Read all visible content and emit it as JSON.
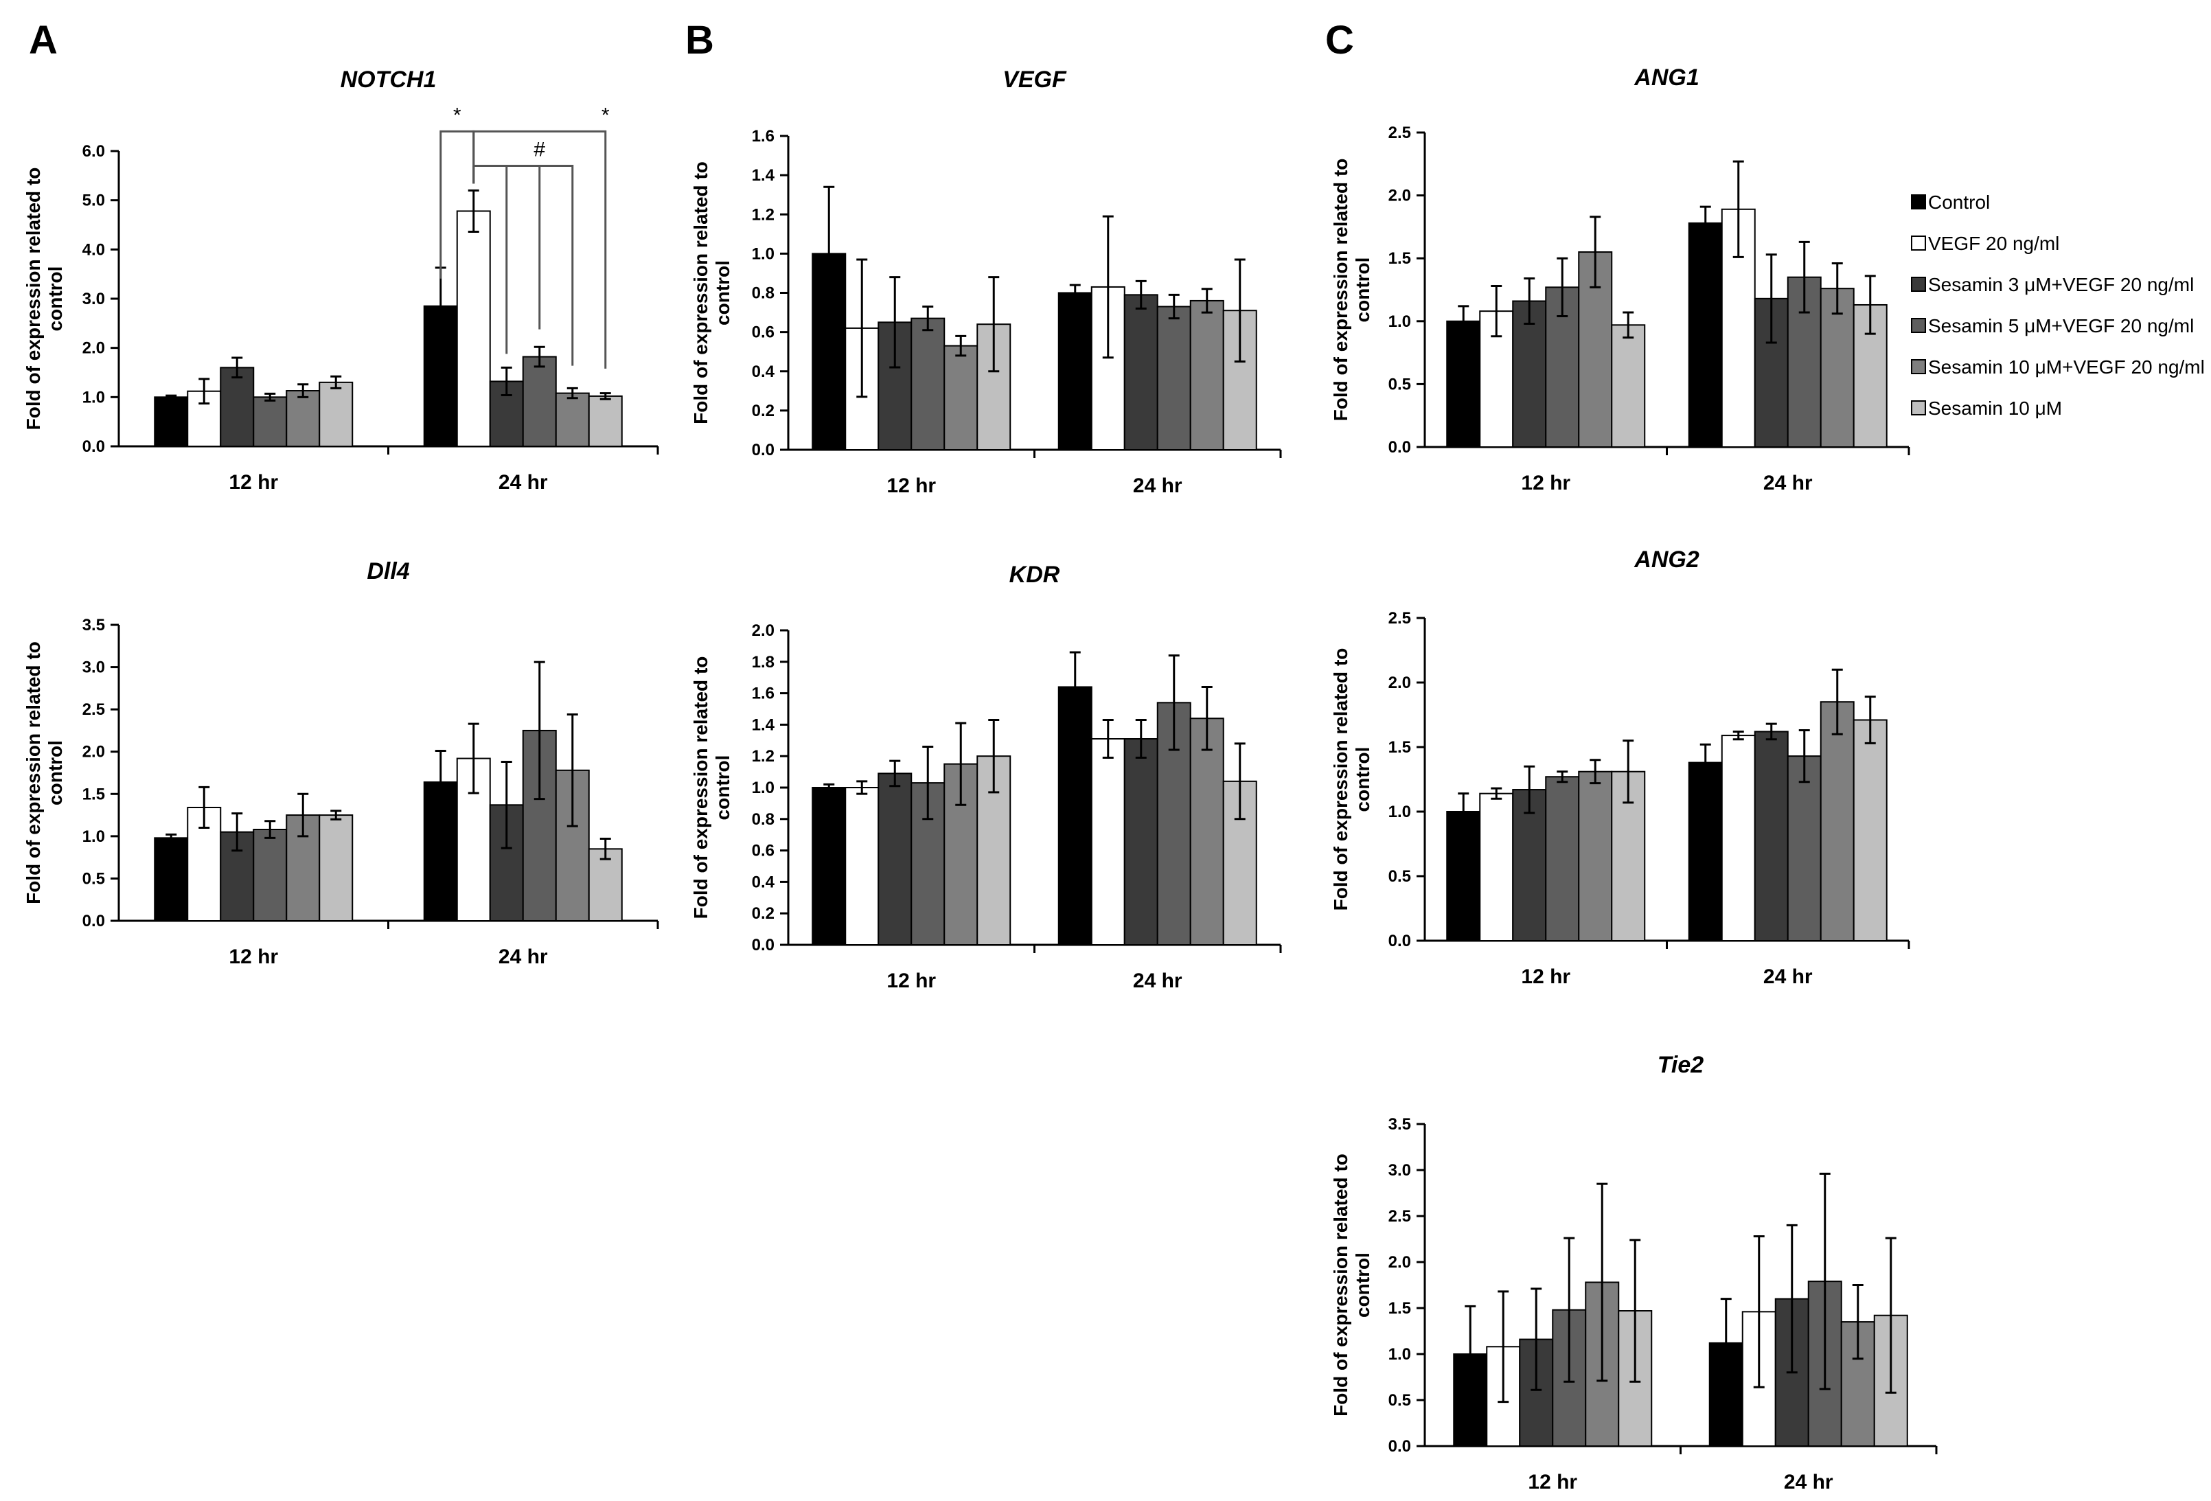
{
  "figure": {
    "panel_letters": [
      "A",
      "B",
      "C"
    ],
    "y_axis_label_line1": "Fold of expression related to",
    "y_axis_label_line2": "control"
  },
  "legend": [
    {
      "label": "Control",
      "color": "#000000"
    },
    {
      "label": "VEGF 20 ng/ml",
      "color": "#ffffff"
    },
    {
      "label": "Sesamin 3 μM+VEGF 20 ng/ml",
      "color": "#3a3a3a"
    },
    {
      "label": "Sesamin 5 μM+VEGF 20 ng/ml",
      "color": "#5e5e5e"
    },
    {
      "label": "Sesamin 10 μM+VEGF 20 ng/ml",
      "color": "#7f7f7f"
    },
    {
      "label": "Sesamin 10 μM",
      "color": "#bfbfbf"
    }
  ],
  "chart_data": [
    {
      "type": "bar",
      "title": "NOTCH1",
      "panel": "A",
      "categories": [
        "12 hr",
        "24 hr"
      ],
      "yticks": [
        "0.0",
        "1.0",
        "2.0",
        "3.0",
        "4.0",
        "5.0",
        "6.0"
      ],
      "ylim": [
        0,
        6
      ],
      "series": [
        {
          "name": "Control",
          "values": [
            1.0,
            2.85
          ],
          "errors": [
            0.03,
            0.78
          ]
        },
        {
          "name": "VEGF 20 ng/ml",
          "values": [
            1.12,
            4.78
          ],
          "errors": [
            0.25,
            0.42
          ]
        },
        {
          "name": "Sesamin 3 μM+VEGF 20 ng/ml",
          "values": [
            1.6,
            1.32
          ],
          "errors": [
            0.2,
            0.28
          ]
        },
        {
          "name": "Sesamin 5 μM+VEGF 20 ng/ml",
          "values": [
            1.0,
            1.82
          ],
          "errors": [
            0.07,
            0.2
          ]
        },
        {
          "name": "Sesamin 10 μM+VEGF 20 ng/ml",
          "values": [
            1.13,
            1.08
          ],
          "errors": [
            0.13,
            0.1
          ]
        },
        {
          "name": "Sesamin 10 μM",
          "values": [
            1.3,
            1.02
          ],
          "errors": [
            0.12,
            0.06
          ]
        }
      ],
      "annotations": [
        {
          "text": "*",
          "from_series": 0,
          "to_series": 1,
          "group": 1,
          "level": 6.4
        },
        {
          "text": "*",
          "from_series": 1,
          "to_series": 5,
          "group": 1,
          "level": 6.4
        },
        {
          "text": "#",
          "from_series": 2,
          "to_series": 4,
          "group": 1,
          "level": 5.7,
          "from_bar": 1
        }
      ]
    },
    {
      "type": "bar",
      "title": "Dll4",
      "panel": "A",
      "categories": [
        "12 hr",
        "24 hr"
      ],
      "yticks": [
        "0.0",
        "0.5",
        "1.0",
        "1.5",
        "2.0",
        "2.5",
        "3.0",
        "3.5"
      ],
      "ylim": [
        0,
        3.5
      ],
      "series": [
        {
          "name": "Control",
          "values": [
            0.98,
            1.64
          ],
          "errors": [
            0.04,
            0.37
          ]
        },
        {
          "name": "VEGF 20 ng/ml",
          "values": [
            1.34,
            1.92
          ],
          "errors": [
            0.24,
            0.41
          ]
        },
        {
          "name": "Sesamin 3 μM+VEGF 20 ng/ml",
          "values": [
            1.05,
            1.37
          ],
          "errors": [
            0.22,
            0.51
          ]
        },
        {
          "name": "Sesamin 5 μM+VEGF 20 ng/ml",
          "values": [
            1.08,
            2.25
          ],
          "errors": [
            0.1,
            0.81
          ]
        },
        {
          "name": "Sesamin 10 μM+VEGF 20 ng/ml",
          "values": [
            1.25,
            1.78
          ],
          "errors": [
            0.25,
            0.66
          ]
        },
        {
          "name": "Sesamin 10 μM",
          "values": [
            1.25,
            0.85
          ],
          "errors": [
            0.05,
            0.12
          ]
        }
      ]
    },
    {
      "type": "bar",
      "title": "VEGF",
      "panel": "B",
      "categories": [
        "12 hr",
        "24 hr"
      ],
      "yticks": [
        "0.0",
        "0.2",
        "0.4",
        "0.6",
        "0.8",
        "1.0",
        "1.2",
        "1.4",
        "1.6"
      ],
      "ylim": [
        0,
        1.6
      ],
      "series": [
        {
          "name": "Control",
          "values": [
            1.0,
            0.8
          ],
          "errors": [
            0.34,
            0.04
          ]
        },
        {
          "name": "VEGF 20 ng/ml",
          "values": [
            0.62,
            0.83
          ],
          "errors": [
            0.35,
            0.36
          ]
        },
        {
          "name": "Sesamin 3 μM+VEGF 20 ng/ml",
          "values": [
            0.65,
            0.79
          ],
          "errors": [
            0.23,
            0.07
          ]
        },
        {
          "name": "Sesamin 5 μM+VEGF 20 ng/ml",
          "values": [
            0.67,
            0.73
          ],
          "errors": [
            0.06,
            0.06
          ]
        },
        {
          "name": "Sesamin 10 μM+VEGF 20 ng/ml",
          "values": [
            0.53,
            0.76
          ],
          "errors": [
            0.05,
            0.06
          ]
        },
        {
          "name": "Sesamin 10 μM",
          "values": [
            0.64,
            0.71
          ],
          "errors": [
            0.24,
            0.26
          ]
        }
      ]
    },
    {
      "type": "bar",
      "title": "KDR",
      "panel": "B",
      "categories": [
        "12 hr",
        "24 hr"
      ],
      "yticks": [
        "0.0",
        "0.2",
        "0.4",
        "0.6",
        "0.8",
        "1.0",
        "1.2",
        "1.4",
        "1.6",
        "1.8",
        "2.0"
      ],
      "ylim": [
        0,
        2.0
      ],
      "series": [
        {
          "name": "Control",
          "values": [
            1.0,
            1.64
          ],
          "errors": [
            0.02,
            0.22
          ]
        },
        {
          "name": "VEGF 20 ng/ml",
          "values": [
            1.0,
            1.31
          ],
          "errors": [
            0.04,
            0.12
          ]
        },
        {
          "name": "Sesamin 3 μM+VEGF 20 ng/ml",
          "values": [
            1.09,
            1.31
          ],
          "errors": [
            0.08,
            0.12
          ]
        },
        {
          "name": "Sesamin 5 μM+VEGF 20 ng/ml",
          "values": [
            1.03,
            1.54
          ],
          "errors": [
            0.23,
            0.3
          ]
        },
        {
          "name": "Sesamin 10 μM+VEGF 20 ng/ml",
          "values": [
            1.15,
            1.44
          ],
          "errors": [
            0.26,
            0.2
          ]
        },
        {
          "name": "Sesamin 10 μM",
          "values": [
            1.2,
            1.04
          ],
          "errors": [
            0.23,
            0.24
          ]
        }
      ]
    },
    {
      "type": "bar",
      "title": "ANG1",
      "panel": "C",
      "categories": [
        "12 hr",
        "24 hr"
      ],
      "yticks": [
        "0.0",
        "0.5",
        "1.0",
        "1.5",
        "2.0",
        "2.5"
      ],
      "ylim": [
        0,
        2.5
      ],
      "series": [
        {
          "name": "Control",
          "values": [
            1.0,
            1.78
          ],
          "errors": [
            0.12,
            0.13
          ]
        },
        {
          "name": "VEGF 20 ng/ml",
          "values": [
            1.08,
            1.89
          ],
          "errors": [
            0.2,
            0.38
          ]
        },
        {
          "name": "Sesamin 3 μM+VEGF 20 ng/ml",
          "values": [
            1.16,
            1.18
          ],
          "errors": [
            0.18,
            0.35
          ]
        },
        {
          "name": "Sesamin 5 μM+VEGF 20 ng/ml",
          "values": [
            1.27,
            1.35
          ],
          "errors": [
            0.23,
            0.28
          ]
        },
        {
          "name": "Sesamin 10 μM+VEGF 20 ng/ml",
          "values": [
            1.55,
            1.26
          ],
          "errors": [
            0.28,
            0.2
          ]
        },
        {
          "name": "Sesamin 10 μM",
          "values": [
            0.97,
            1.13
          ],
          "errors": [
            0.1,
            0.23
          ]
        }
      ]
    },
    {
      "type": "bar",
      "title": "ANG2",
      "panel": "C",
      "categories": [
        "12 hr",
        "24 hr"
      ],
      "yticks": [
        "0.0",
        "0.5",
        "1.0",
        "1.5",
        "2.0",
        "2.5"
      ],
      "ylim": [
        0,
        2.5
      ],
      "series": [
        {
          "name": "Control",
          "values": [
            1.0,
            1.38
          ],
          "errors": [
            0.14,
            0.14
          ]
        },
        {
          "name": "VEGF 20 ng/ml",
          "values": [
            1.14,
            1.59
          ],
          "errors": [
            0.04,
            0.03
          ]
        },
        {
          "name": "Sesamin 3 μM+VEGF 20 ng/ml",
          "values": [
            1.17,
            1.62
          ],
          "errors": [
            0.18,
            0.06
          ]
        },
        {
          "name": "Sesamin 5 μM+VEGF 20 ng/ml",
          "values": [
            1.27,
            1.43
          ],
          "errors": [
            0.04,
            0.2
          ]
        },
        {
          "name": "Sesamin 10 μM+VEGF 20 ng/ml",
          "values": [
            1.31,
            1.85
          ],
          "errors": [
            0.09,
            0.25
          ]
        },
        {
          "name": "Sesamin 10 μM",
          "values": [
            1.31,
            1.71
          ],
          "errors": [
            0.24,
            0.18
          ]
        }
      ]
    },
    {
      "type": "bar",
      "title": "Tie2",
      "panel": "C",
      "categories": [
        "12 hr",
        "24 hr"
      ],
      "yticks": [
        "0.0",
        "0.5",
        "1.0",
        "1.5",
        "2.0",
        "2.5",
        "3.0",
        "3.5"
      ],
      "ylim": [
        0,
        3.5
      ],
      "series": [
        {
          "name": "Control",
          "values": [
            1.0,
            1.12
          ],
          "errors": [
            0.52,
            0.48
          ]
        },
        {
          "name": "VEGF 20 ng/ml",
          "values": [
            1.08,
            1.46
          ],
          "errors": [
            0.6,
            0.82
          ]
        },
        {
          "name": "Sesamin 3 μM+VEGF 20 ng/ml",
          "values": [
            1.16,
            1.6
          ],
          "errors": [
            0.55,
            0.8
          ]
        },
        {
          "name": "Sesamin 5 μM+VEGF 20 ng/ml",
          "values": [
            1.48,
            1.79
          ],
          "errors": [
            0.78,
            1.17
          ]
        },
        {
          "name": "Sesamin 10 μM+VEGF 20 ng/ml",
          "values": [
            1.78,
            1.35
          ],
          "errors": [
            1.07,
            0.4
          ]
        },
        {
          "name": "Sesamin 10 μM",
          "values": [
            1.47,
            1.42
          ],
          "errors": [
            0.77,
            0.84
          ]
        }
      ]
    }
  ]
}
